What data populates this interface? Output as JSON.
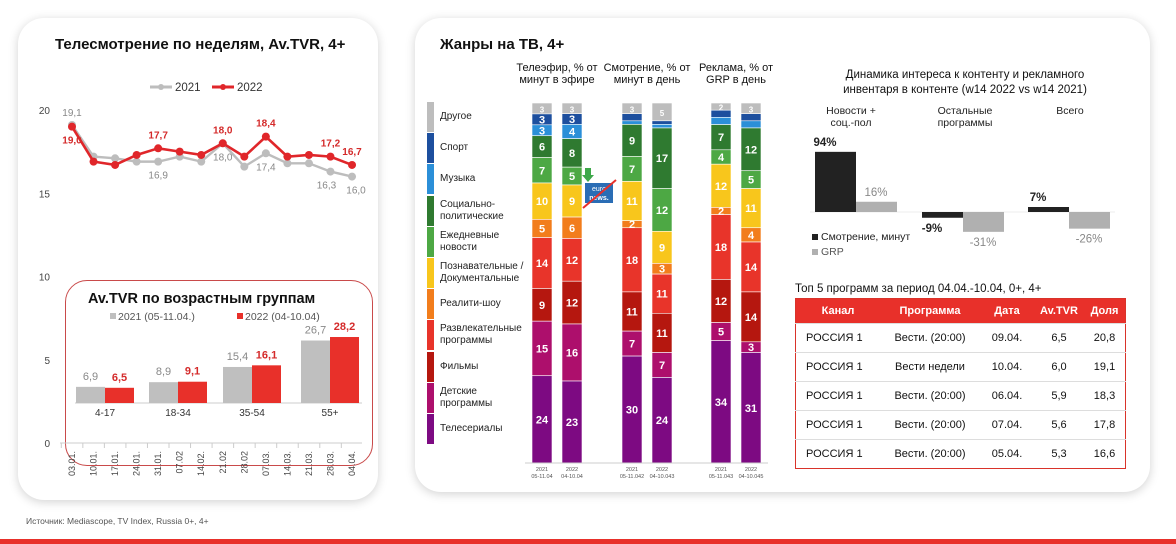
{
  "footer": {
    "source": "Источник: Mediascope, TV Index,  Russia 0+, 4+",
    "accent": "#e8302a"
  },
  "chart_data": [
    {
      "type": "line",
      "title": "Телесмотрение по неделям, Av.TVR, 4+",
      "categories": [
        "03.01.",
        "10.01.",
        "17.01.",
        "24.01.",
        "31.01.",
        "07.02",
        "14.02.",
        "21.02",
        "28.02",
        "07.03.",
        "14.03.",
        "21.03.",
        "28.03.",
        "04.04."
      ],
      "ylim": [
        0,
        20
      ],
      "yticks": [
        "0",
        "5",
        "10",
        "15",
        "20"
      ],
      "legend": "top",
      "series": [
        {
          "name": "2021",
          "color": "#bdbdbd",
          "values": [
            19.1,
            17.2,
            17.1,
            16.9,
            16.9,
            17.2,
            16.9,
            18.0,
            16.6,
            17.4,
            16.8,
            16.8,
            16.3,
            16.0
          ],
          "labels": [
            "19,1",
            null,
            null,
            null,
            "16,9",
            null,
            null,
            "18,0",
            null,
            "17,4",
            null,
            null,
            "16,3",
            "16,0"
          ]
        },
        {
          "name": "2022",
          "color": "#e0262a",
          "values": [
            19.0,
            16.9,
            16.7,
            17.3,
            17.7,
            17.5,
            17.3,
            18.0,
            17.2,
            18.4,
            17.2,
            17.3,
            17.2,
            16.7
          ],
          "labels": [
            "19,0",
            null,
            null,
            null,
            "17,7",
            null,
            null,
            "18,0",
            null,
            "18,4",
            null,
            null,
            "17,2",
            "16,7"
          ]
        }
      ]
    },
    {
      "type": "bar",
      "title": "Av.TVR по возрастным группам",
      "categories": [
        "4-17",
        "18-34",
        "35-54",
        "55+"
      ],
      "series": [
        {
          "name": "2021 (05-11.04.)",
          "color": "#bfbfbf",
          "values": [
            6.9,
            8.9,
            15.4,
            26.7
          ],
          "labels": [
            "6,9",
            "8,9",
            "15,4",
            "26,7"
          ]
        },
        {
          "name": "2022 (04-10.04)",
          "color": "#e8302a",
          "values": [
            6.5,
            9.1,
            16.1,
            28.2
          ],
          "labels": [
            "6,5",
            "9,1",
            "16,1",
            "28,2"
          ]
        }
      ]
    },
    {
      "type": "bar",
      "stacked": true,
      "title": "Жанры на ТВ, 4+",
      "genres": [
        {
          "name": "Другое",
          "color": "#bdbdbd"
        },
        {
          "name": "Спорт",
          "color": "#1d4f9e"
        },
        {
          "name": "Музыка",
          "color": "#2b8fd8"
        },
        {
          "name": "Социально-политические",
          "color": "#2f7a30"
        },
        {
          "name": "Ежедневные новости",
          "color": "#4da844"
        },
        {
          "name": "Познавательные / Документальные",
          "color": "#f8c61c"
        },
        {
          "name": "Реалити-шоу",
          "color": "#f27d1c"
        },
        {
          "name": "Развлекательные программы",
          "color": "#e8342a"
        },
        {
          "name": "Фильмы",
          "color": "#b5170f"
        },
        {
          "name": "Детские программы",
          "color": "#ad0f6c"
        },
        {
          "name": "Телесериалы",
          "color": "#7d0a82"
        }
      ],
      "groups": [
        {
          "header": "Телеэфир, % от минут в эфире"
        },
        {
          "header": "Смотрение, % от минут в день"
        },
        {
          "header": "Реклама, % от GRP в день"
        }
      ],
      "bars": [
        {
          "group": 0,
          "year": "2021",
          "period": "05-11.04",
          "values": [
            3,
            3,
            3,
            6,
            7,
            10,
            5,
            14,
            9,
            15,
            24
          ],
          "labels": [
            "3",
            "3",
            "3",
            "6",
            "7",
            "10",
            "5",
            "14",
            "9",
            "15",
            "24"
          ]
        },
        {
          "group": 0,
          "year": "2022",
          "period": "04-10.04",
          "values": [
            3,
            3,
            4,
            8,
            5,
            9,
            6,
            12,
            12,
            16,
            23
          ],
          "labels": [
            "3",
            "3",
            "4",
            "8",
            "5",
            "9",
            "6",
            "12",
            "12",
            "16",
            "23"
          ]
        },
        {
          "group": 1,
          "year": "2021",
          "period": "05-11.042",
          "values": [
            3,
            2,
            1,
            9,
            7,
            11,
            2,
            18,
            11,
            7,
            30
          ],
          "labels": [
            "3",
            null,
            null,
            "9",
            "7",
            "11",
            "2",
            "18",
            "11",
            "7",
            "30"
          ]
        },
        {
          "group": 1,
          "year": "2022",
          "period": "04-10.043",
          "values": [
            5,
            1,
            1,
            17,
            12,
            9,
            3,
            11,
            11,
            7,
            24
          ],
          "labels": [
            "5",
            null,
            null,
            "17",
            "12",
            "9",
            "3",
            "11",
            "11",
            "7",
            "24"
          ]
        },
        {
          "group": 2,
          "year": "2021",
          "period": "05-11.043",
          "values": [
            2,
            2,
            2,
            7,
            4,
            12,
            2,
            18,
            12,
            5,
            34
          ],
          "labels": [
            "2",
            null,
            null,
            "7",
            "4",
            "12",
            "2",
            "18",
            "12",
            "5",
            "34"
          ]
        },
        {
          "group": 2,
          "year": "2022",
          "period": "04-10.045",
          "values": [
            3,
            2,
            2,
            12,
            5,
            11,
            4,
            14,
            14,
            3,
            31
          ],
          "labels": [
            "3",
            null,
            null,
            "12",
            "5",
            "11",
            "4",
            "14",
            "14",
            "3",
            "31"
          ]
        }
      ],
      "annotation": {
        "logo": "euro news.",
        "note": "crossed-out-logo",
        "arrow": "down-arrow"
      }
    },
    {
      "type": "bar",
      "title": "Динамика интереса к контенту и рекламного инвентаря в контенте (w14 2022 vs w14 2021)",
      "categories": [
        "Новости + соц.-пол",
        "Остальные программы",
        "Всего"
      ],
      "legend": "bottom-left",
      "series": [
        {
          "name": "Смотрение, минут",
          "color": "#222222",
          "values": [
            94,
            -9,
            7
          ],
          "labels": [
            "94%",
            "-9%",
            "7%"
          ]
        },
        {
          "name": "GRP",
          "color": "#b0b0b0",
          "values": [
            16,
            -31,
            -26
          ],
          "labels": [
            "16%",
            "-31%",
            "-26%"
          ]
        }
      ]
    },
    {
      "type": "table",
      "title": "Топ 5 программ за период 04.04.-10.04, 0+, 4+",
      "columns": [
        "Канал",
        "Программа",
        "Дата",
        "Av.TVR",
        "Доля"
      ],
      "rows": [
        [
          "РОССИЯ 1",
          "Вести. (20:00)",
          "09.04.",
          "6,5",
          "20,8"
        ],
        [
          "РОССИЯ 1",
          "Вести недели",
          "10.04.",
          "6,0",
          "19,1"
        ],
        [
          "РОССИЯ 1",
          "Вести. (20:00)",
          "06.04.",
          "5,9",
          "18,3"
        ],
        [
          "РОССИЯ 1",
          "Вести. (20:00)",
          "07.04.",
          "5,6",
          "17,8"
        ],
        [
          "РОССИЯ 1",
          "Вести. (20:00)",
          "05.04.",
          "5,3",
          "16,6"
        ]
      ]
    }
  ]
}
